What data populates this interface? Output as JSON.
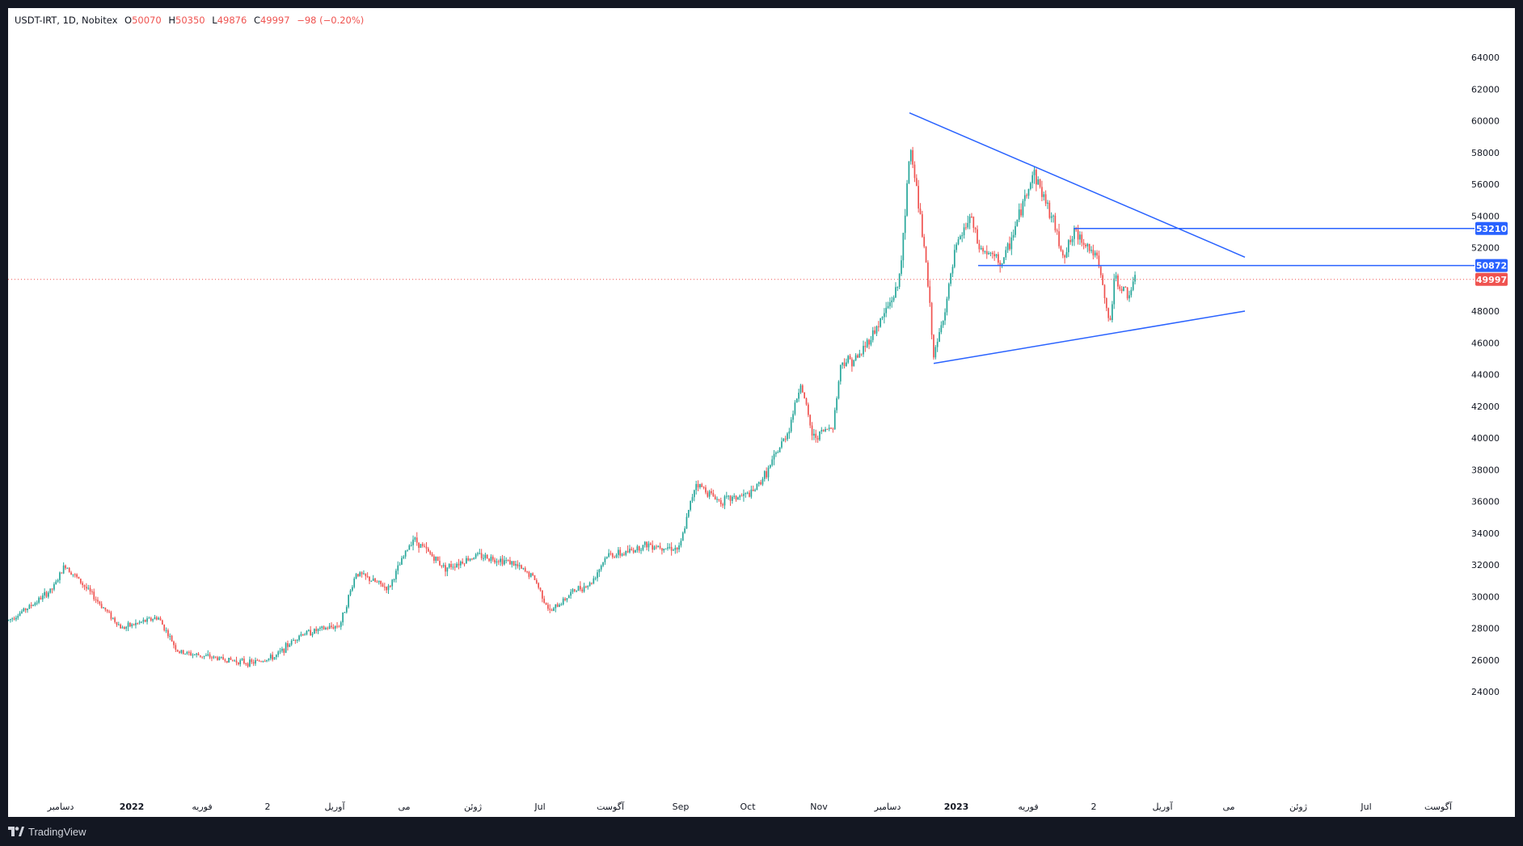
{
  "header": {
    "symbol": "USDT-IRT, 1D, Nobitex",
    "open_label": "O",
    "open": "50070",
    "high_label": "H",
    "high": "50350",
    "low_label": "L",
    "low": "49876",
    "close_label": "C",
    "close": "49997",
    "change": "−98 (−0.20%)"
  },
  "footer": {
    "brand": "TradingView",
    "logo_icon": "tradingview-logo-icon"
  },
  "colors": {
    "up": "#26a69a",
    "down": "#ef5350",
    "line": "#2962ff",
    "background": "#ffffff",
    "frame": "#131722"
  },
  "chart_data": {
    "type": "candlestick",
    "symbol": "USDT-IRT",
    "interval": "1D",
    "exchange": "Nobitex",
    "ylim": [
      23000,
      65000
    ],
    "y_ticks": [
      "64000",
      "62000",
      "60000",
      "58000",
      "56000",
      "54000",
      "52000",
      "48000",
      "46000",
      "44000",
      "42000",
      "40000",
      "38000",
      "36000",
      "34000",
      "32000",
      "30000",
      "28000",
      "26000",
      "24000"
    ],
    "x_tick_labels": [
      "دسامبر",
      "2022",
      "فوریه",
      "2",
      "آوریل",
      "می",
      "ژوئن",
      "Jul",
      "آگوست",
      "Sep",
      "Oct",
      "Nov",
      "دسامبر",
      "2023",
      "فوریه",
      "2",
      "آوریل",
      "می",
      "ژوئن",
      "Jul",
      "آگوست"
    ],
    "price_path": [
      [
        0,
        28500
      ],
      [
        30,
        29500
      ],
      [
        55,
        30500
      ],
      [
        70,
        32000
      ],
      [
        100,
        30300
      ],
      [
        140,
        28000
      ],
      [
        185,
        28700
      ],
      [
        210,
        26500
      ],
      [
        260,
        26100
      ],
      [
        300,
        25800
      ],
      [
        330,
        26200
      ],
      [
        360,
        27600
      ],
      [
        410,
        28200
      ],
      [
        430,
        31500
      ],
      [
        470,
        30500
      ],
      [
        500,
        33700
      ],
      [
        540,
        31800
      ],
      [
        580,
        32600
      ],
      [
        620,
        32200
      ],
      [
        650,
        31200
      ],
      [
        670,
        29000
      ],
      [
        700,
        30400
      ],
      [
        720,
        30800
      ],
      [
        740,
        32600
      ],
      [
        760,
        32700
      ],
      [
        790,
        33300
      ],
      [
        830,
        33000
      ],
      [
        850,
        37200
      ],
      [
        880,
        36000
      ],
      [
        920,
        36500
      ],
      [
        940,
        38000
      ],
      [
        965,
        40500
      ],
      [
        980,
        43500
      ],
      [
        995,
        40000
      ],
      [
        1020,
        40800
      ],
      [
        1030,
        44800
      ],
      [
        1050,
        45000
      ],
      [
        1080,
        47500
      ],
      [
        1100,
        49500
      ],
      [
        1108,
        53000
      ],
      [
        1115,
        58500
      ],
      [
        1120,
        57000
      ],
      [
        1135,
        51000
      ],
      [
        1145,
        45000
      ],
      [
        1160,
        48500
      ],
      [
        1172,
        52000
      ],
      [
        1190,
        54000
      ],
      [
        1200,
        52000
      ],
      [
        1230,
        51000
      ],
      [
        1250,
        54000
      ],
      [
        1268,
        56800
      ],
      [
        1290,
        54000
      ],
      [
        1305,
        51500
      ],
      [
        1320,
        53000
      ],
      [
        1345,
        51500
      ],
      [
        1352,
        50000
      ],
      [
        1362,
        47000
      ],
      [
        1368,
        50000
      ],
      [
        1385,
        49000
      ],
      [
        1395,
        49997
      ]
    ],
    "trendlines": [
      {
        "name": "upper-trendline",
        "points": [
          [
            1115,
            60500
          ],
          [
            1530,
            51400
          ]
        ]
      },
      {
        "name": "lower-trendline",
        "points": [
          [
            1145,
            44700
          ],
          [
            1530,
            48000
          ]
        ]
      }
    ],
    "horizontal_lines": [
      {
        "name": "resistance-53210",
        "value": 53210,
        "label": "53210",
        "start_x": 1318
      },
      {
        "name": "support-50872",
        "value": 50872,
        "label": "50872",
        "start_x": 1200
      }
    ],
    "last_price": {
      "value": 49997,
      "label": "49997"
    }
  }
}
